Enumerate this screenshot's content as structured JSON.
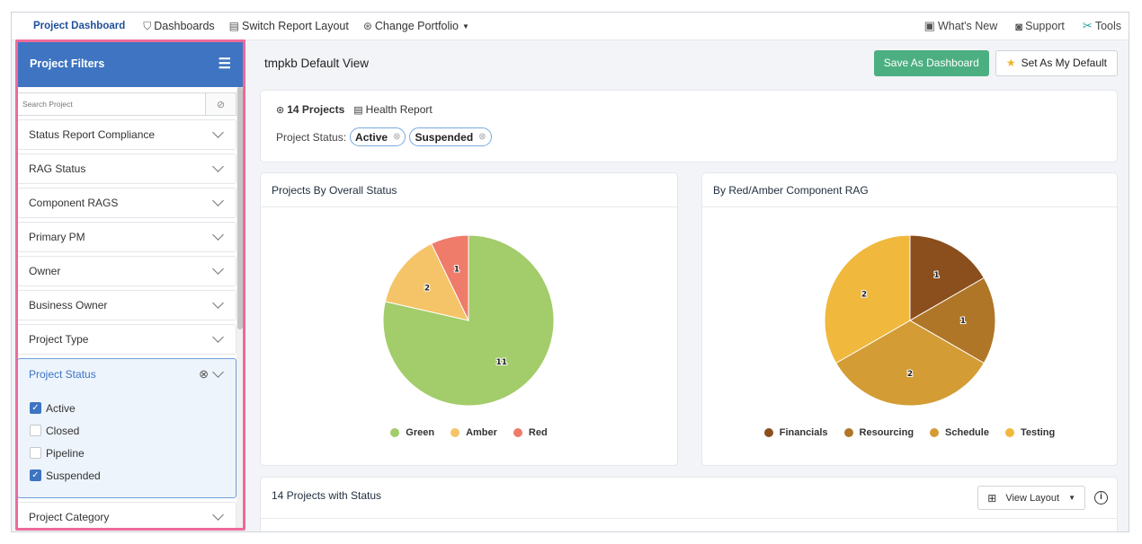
{
  "nav": {
    "items": [
      {
        "label": "Project Dashboard",
        "icon": "",
        "active": true
      },
      {
        "label": "Dashboards",
        "icon": "⛉"
      },
      {
        "label": "Switch Report Layout",
        "icon": "▤"
      },
      {
        "label": "Change Portfolio",
        "icon": "⊛",
        "dropdown": true
      }
    ],
    "right": [
      {
        "label": "What's New",
        "icon": "▣"
      },
      {
        "label": "Support",
        "icon": "◙"
      },
      {
        "label": "Tools",
        "icon": "✂"
      }
    ]
  },
  "sidebar": {
    "title": "Project Filters",
    "search_placeholder": "Search Project",
    "filters": [
      "Status Report Compliance",
      "RAG Status",
      "Component RAGS",
      "Primary PM",
      "Owner",
      "Business Owner",
      "Project Type"
    ],
    "open_filter": {
      "label": "Project Status",
      "options": [
        {
          "label": "Active",
          "checked": true
        },
        {
          "label": "Closed",
          "checked": false
        },
        {
          "label": "Pipeline",
          "checked": false
        },
        {
          "label": "Suspended",
          "checked": true
        }
      ]
    },
    "after_filters": [
      "Project Category"
    ]
  },
  "main": {
    "view_title": "tmpkb Default View",
    "save_button": "Save As Dashboard",
    "default_button": "Set As My Default",
    "summary": {
      "projects": "14 Projects",
      "health_report": "Health Report",
      "status_label": "Project Status:",
      "chips": [
        "Active",
        "Suspended"
      ]
    },
    "table": {
      "title": "14 Projects with Status",
      "view_layout": "View Layout"
    }
  },
  "chart_data": [
    {
      "type": "pie",
      "title": "Projects By Overall Status",
      "categories": [
        "Green",
        "Amber",
        "Red"
      ],
      "values": [
        11,
        2,
        1
      ],
      "colors": [
        "#a3cc6a",
        "#f5c468",
        "#ef7b6b"
      ]
    },
    {
      "type": "pie",
      "title": "By Red/Amber Component RAG",
      "categories": [
        "Financials",
        "Resourcing",
        "Schedule",
        "Testing"
      ],
      "values": [
        1,
        1,
        2,
        2
      ],
      "colors": [
        "#8a4f1c",
        "#b07627",
        "#d39c35",
        "#f0b83d"
      ]
    }
  ]
}
